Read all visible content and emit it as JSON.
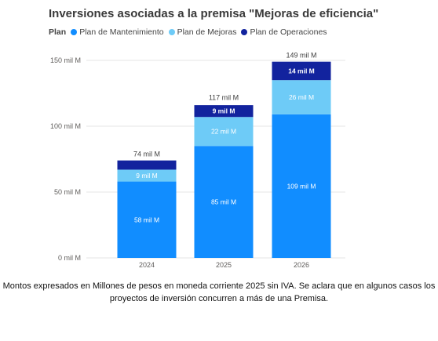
{
  "chart_data": {
    "type": "bar",
    "stacked": true,
    "title": "Inversiones asociadas a la premisa \"Mejoras de eficiencia\"",
    "legend_title": "Plan",
    "legend_position": "top-left",
    "categories": [
      "2024",
      "2025",
      "2026"
    ],
    "series": [
      {
        "name": "Plan de Mantenimiento",
        "color": "#118DFF",
        "values": [
          58,
          85,
          109
        ],
        "labels": [
          "58 mil M",
          "85 mil M",
          "109 mil M"
        ]
      },
      {
        "name": "Plan de Mejoras",
        "color": "#6ECBF7",
        "values": [
          9,
          22,
          26
        ],
        "labels": [
          "9 mil M",
          "22 mil M",
          "26 mil M"
        ]
      },
      {
        "name": "Plan de Operaciones",
        "color": "#12239E",
        "values": [
          7,
          9,
          14
        ],
        "labels": [
          "",
          "9 mil M",
          "14 mil M"
        ]
      }
    ],
    "totals": [
      74,
      117,
      149
    ],
    "total_labels": [
      "74 mil M",
      "117 mil M",
      "149 mil M"
    ],
    "yticks": [
      0,
      50,
      100,
      150
    ],
    "ytick_labels": [
      "0 mil M",
      "50 mil M",
      "100 mil M",
      "150 mil M"
    ],
    "ylim": [
      0,
      150
    ],
    "grid": true
  },
  "footnote": "Montos expresados en Millones de pesos en moneda corriente 2025 sin IVA. Se aclara que en algunos casos los proyectos de inversión concurren a más de una Premisa."
}
